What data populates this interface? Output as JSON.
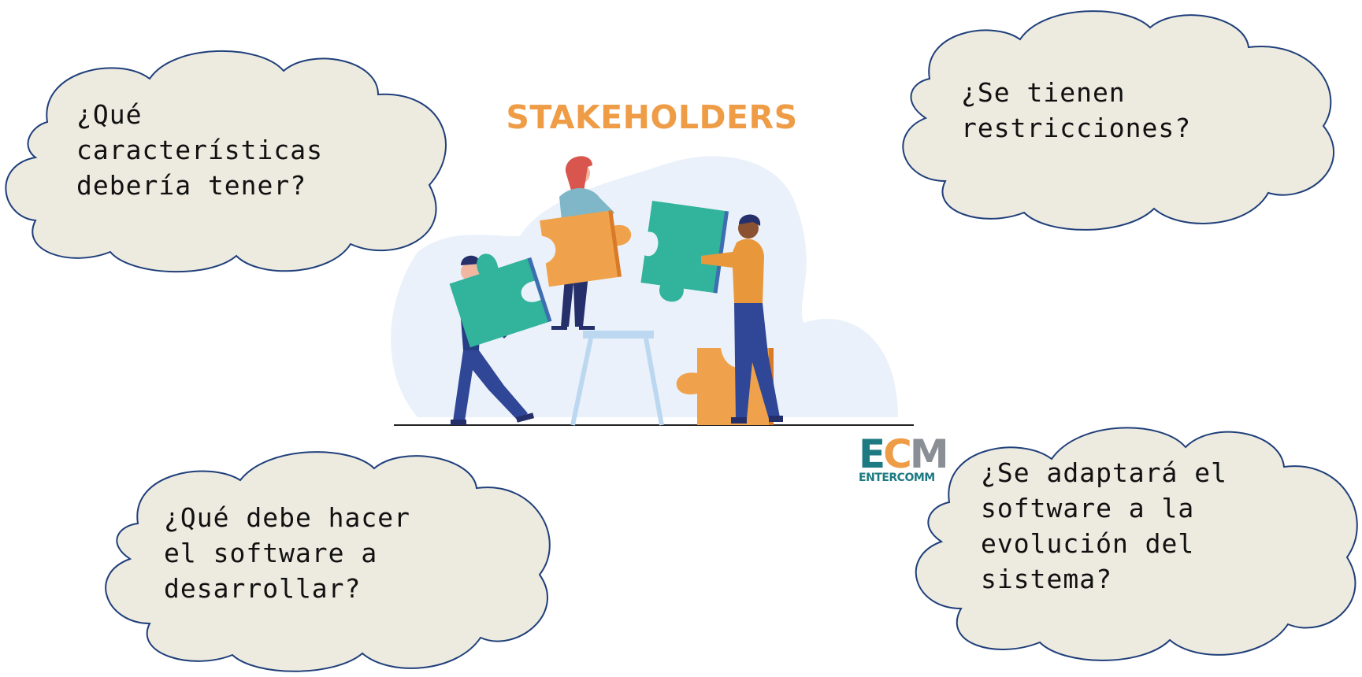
{
  "title": "STAKEHOLDERS",
  "colors": {
    "title": "#ef9c47",
    "cloud_fill": "#edeae0",
    "cloud_stroke": "#1f3f7a",
    "puzzle_teal": "#32b39c",
    "puzzle_orange": "#efa24b",
    "people_navy": "#253d85",
    "logo_teal": "#1d7a82",
    "logo_orange": "#ef9c47",
    "logo_gray": "#8a8f96"
  },
  "clouds": [
    {
      "text": "¿Qué\ncaracterísticas\ndebería tener?"
    },
    {
      "text": "¿Se tienen\nrestricciones?"
    },
    {
      "text": "¿Qué debe hacer\nel software a\ndesarrollar?"
    },
    {
      "text": "¿Se adaptará el\nsoftware a la\nevolución del\nsistema?"
    }
  ],
  "illustration": {
    "icon": "puzzle-team-illustration",
    "items": [
      "man-carrying-teal-piece",
      "woman-on-stool-orange-piece",
      "man-holding-teal-piece",
      "floor-orange-piece"
    ]
  },
  "logo": {
    "icon": "ecm-logo",
    "letters": [
      "E",
      "C",
      "M"
    ],
    "subtitle": "ENTERCOMM"
  }
}
